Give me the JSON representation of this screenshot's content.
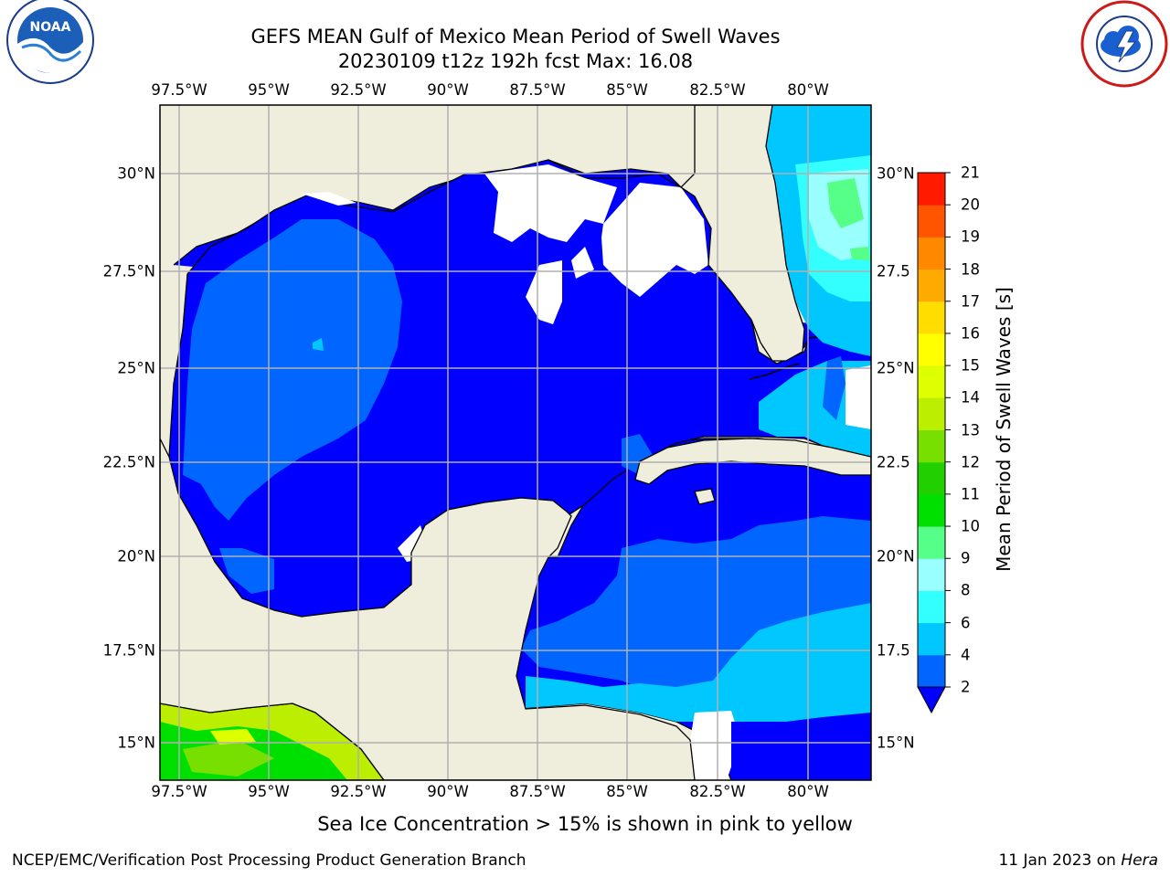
{
  "header": {
    "title_line1": "GEFS MEAN Gulf of Mexico Mean Period of Swell Waves",
    "title_line2": "20230109 t12z 192h fcst   Max: 16.08"
  },
  "logos": {
    "left": "noaa-logo",
    "right": "national-weather-service-logo"
  },
  "map": {
    "lon_labels": [
      "97.5°W",
      "95°W",
      "92.5°W",
      "90°W",
      "87.5°W",
      "85°W",
      "82.5°W",
      "80°W"
    ],
    "lat_labels_left": [
      "30°N",
      "27.5°N",
      "25°N",
      "22.5°N",
      "20°N",
      "17.5°N",
      "15°N"
    ],
    "lat_labels_right": [
      "30°N",
      "27.5",
      "25°N",
      "22.5",
      "20°N",
      "17.5",
      "15°N"
    ],
    "land_color": "#efeddc",
    "grid_color": "#b0b0b0"
  },
  "colorbar": {
    "title": "Mean Period of Swell Waves [s]",
    "labels": [
      "2",
      "4",
      "6",
      "8",
      "9",
      "10",
      "11",
      "12",
      "13",
      "14",
      "15",
      "16",
      "17",
      "18",
      "19",
      "20",
      "21"
    ],
    "colors": [
      "#0066ff",
      "#00c8ff",
      "#33ffff",
      "#99ffff",
      "#55ff88",
      "#00e000",
      "#22d000",
      "#77e000",
      "#bbee00",
      "#ddff00",
      "#ffff00",
      "#ffdd00",
      "#ffaa00",
      "#ff8800",
      "#ff5500",
      "#ff1a00",
      "#ff0000"
    ],
    "under_color": "#0000ff"
  },
  "caption": "Sea Ice Concentration > 15% is shown in pink to yellow",
  "footer": {
    "left": "NCEP/EMC/Verification Post Processing Product Generation Branch",
    "right_date": "11 Jan 2023 on ",
    "right_host": "Hera"
  }
}
